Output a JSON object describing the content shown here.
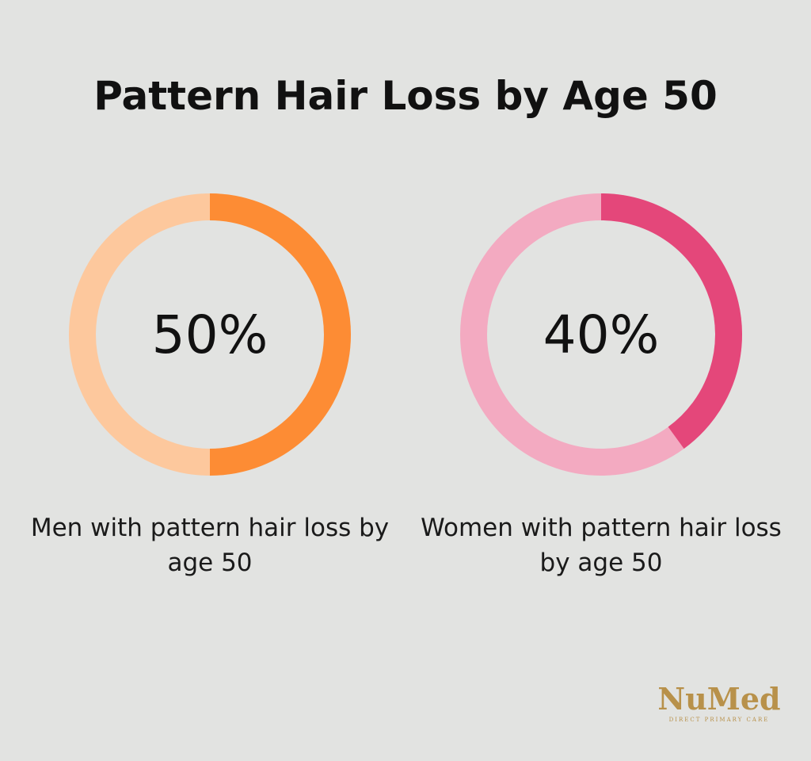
{
  "title": "Pattern Hair Loss by Age 50",
  "chart_data": [
    {
      "type": "donut",
      "caption": "Men with pattern hair loss by age 50",
      "values": [
        50
      ],
      "value_labels": [
        "50%"
      ],
      "color": "#fd8c34",
      "track_color": "#fdc89d"
    },
    {
      "type": "donut",
      "caption": "Women with pattern hair loss by age 50",
      "values": [
        40
      ],
      "value_labels": [
        "40%"
      ],
      "color": "#e4477a",
      "track_color": "#f3aac1"
    }
  ],
  "logo": {
    "name": "NuMed",
    "tagline": "DIRECT PRIMARY CARE"
  }
}
